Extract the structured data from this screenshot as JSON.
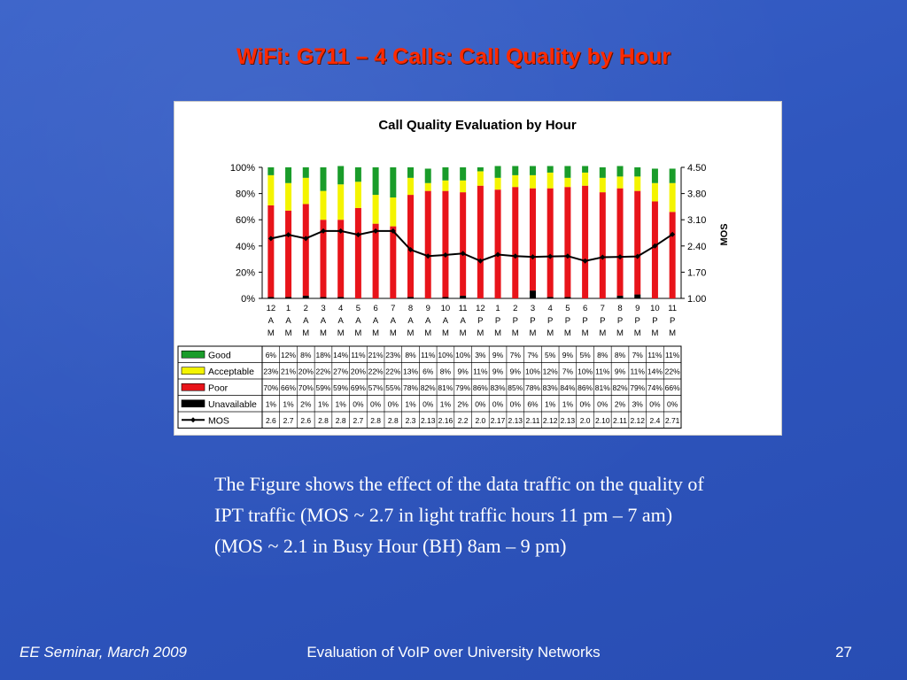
{
  "slide": {
    "title": "WiFi: G711 – 4 Calls: Call Quality by Hour",
    "body": "The Figure shows the effect of the data traffic on the quality of IPT traffic (MOS ~ 2.7 in light traffic hours 11 pm – 7 am) (MOS ~ 2.1 in Busy Hour (BH) 8am – 9 pm)",
    "footer_left": "EE Seminar, March 2009",
    "footer_center": "Evaluation of VoIP over University Networks",
    "footer_right": "27"
  },
  "chart_data": {
    "type": "bar",
    "title": "Call Quality Evaluation by Hour",
    "ylabel_right": "MOS",
    "ylim": [
      0,
      100
    ],
    "y_ticks": [
      "0%",
      "20%",
      "40%",
      "60%",
      "80%",
      "100%"
    ],
    "y2lim": [
      1.0,
      4.5
    ],
    "y2_ticks": [
      "1.00",
      "1.70",
      "2.40",
      "3.10",
      "3.80",
      "4.50"
    ],
    "categories": [
      "12 AM",
      "1 AM",
      "2 AM",
      "3 AM",
      "4 AM",
      "5 AM",
      "6 AM",
      "7 AM",
      "8 AM",
      "9 AM",
      "10 AM",
      "11 AM",
      "12 PM",
      "1 PM",
      "2 PM",
      "3 PM",
      "4 PM",
      "5 PM",
      "6 PM",
      "7 PM",
      "8 PM",
      "9 PM",
      "10 PM",
      "11 PM"
    ],
    "series": [
      {
        "name": "Good",
        "color": "#1a9c2a",
        "display": [
          "6%",
          "12%",
          "8%",
          "18%",
          "14%",
          "11%",
          "21%",
          "23%",
          "8%",
          "11%",
          "10%",
          "10%",
          "3%",
          "9%",
          "7%",
          "7%",
          "5%",
          "9%",
          "5%",
          "8%",
          "8%",
          "7%",
          "11%",
          "11%"
        ],
        "values": [
          6,
          12,
          8,
          18,
          14,
          11,
          21,
          23,
          8,
          11,
          10,
          10,
          3,
          9,
          7,
          7,
          5,
          9,
          5,
          8,
          8,
          7,
          11,
          11
        ]
      },
      {
        "name": "Acceptable",
        "color": "#f4f400",
        "display": [
          "23%",
          "21%",
          "20%",
          "22%",
          "27%",
          "20%",
          "22%",
          "22%",
          "13%",
          "6%",
          "8%",
          "9%",
          "11%",
          "9%",
          "9%",
          "10%",
          "12%",
          "7%",
          "10%",
          "11%",
          "9%",
          "11%",
          "14%",
          "22%"
        ],
        "values": [
          23,
          21,
          20,
          22,
          27,
          20,
          22,
          22,
          13,
          6,
          8,
          9,
          11,
          9,
          9,
          10,
          12,
          7,
          10,
          11,
          9,
          11,
          14,
          22
        ]
      },
      {
        "name": "Poor",
        "color": "#e8141a",
        "display": [
          "70%",
          "66%",
          "70%",
          "59%",
          "59%",
          "69%",
          "57%",
          "55%",
          "78%",
          "82%",
          "81%",
          "79%",
          "86%",
          "83%",
          "85%",
          "78%",
          "83%",
          "84%",
          "86%",
          "81%",
          "82%",
          "79%",
          "74%",
          "66%"
        ],
        "values": [
          70,
          66,
          70,
          59,
          59,
          69,
          57,
          55,
          78,
          82,
          81,
          79,
          86,
          83,
          85,
          78,
          83,
          84,
          86,
          81,
          82,
          79,
          74,
          66
        ]
      },
      {
        "name": "Unavailable",
        "color": "#000000",
        "display": [
          "1%",
          "1%",
          "2%",
          "1%",
          "1%",
          "0%",
          "0%",
          "0%",
          "1%",
          "0%",
          "1%",
          "2%",
          "0%",
          "0%",
          "0%",
          "6%",
          "1%",
          "1%",
          "0%",
          "0%",
          "2%",
          "3%",
          "0%",
          "0%"
        ],
        "values": [
          1,
          1,
          2,
          1,
          1,
          0,
          0,
          0,
          1,
          0,
          1,
          2,
          0,
          0,
          0,
          6,
          1,
          1,
          0,
          0,
          2,
          3,
          0,
          0
        ]
      },
      {
        "name": "MOS",
        "color": "#000000",
        "axis": "right",
        "display": [
          "2.6",
          "2.7",
          "2.6",
          "2.8",
          "2.8",
          "2.7",
          "2.8",
          "2.8",
          "2.3",
          "2.13",
          "2.16",
          "2.2",
          "2.0",
          "2.17",
          "2.13",
          "2.11",
          "2.12",
          "2.13",
          "2.0",
          "2.10",
          "2.11",
          "2.12",
          "2.4",
          "2.71"
        ],
        "values": [
          2.6,
          2.7,
          2.6,
          2.8,
          2.8,
          2.7,
          2.8,
          2.8,
          2.3,
          2.13,
          2.16,
          2.2,
          2.0,
          2.17,
          2.13,
          2.11,
          2.12,
          2.13,
          2.0,
          2.1,
          2.11,
          2.12,
          2.4,
          2.71
        ]
      }
    ]
  }
}
